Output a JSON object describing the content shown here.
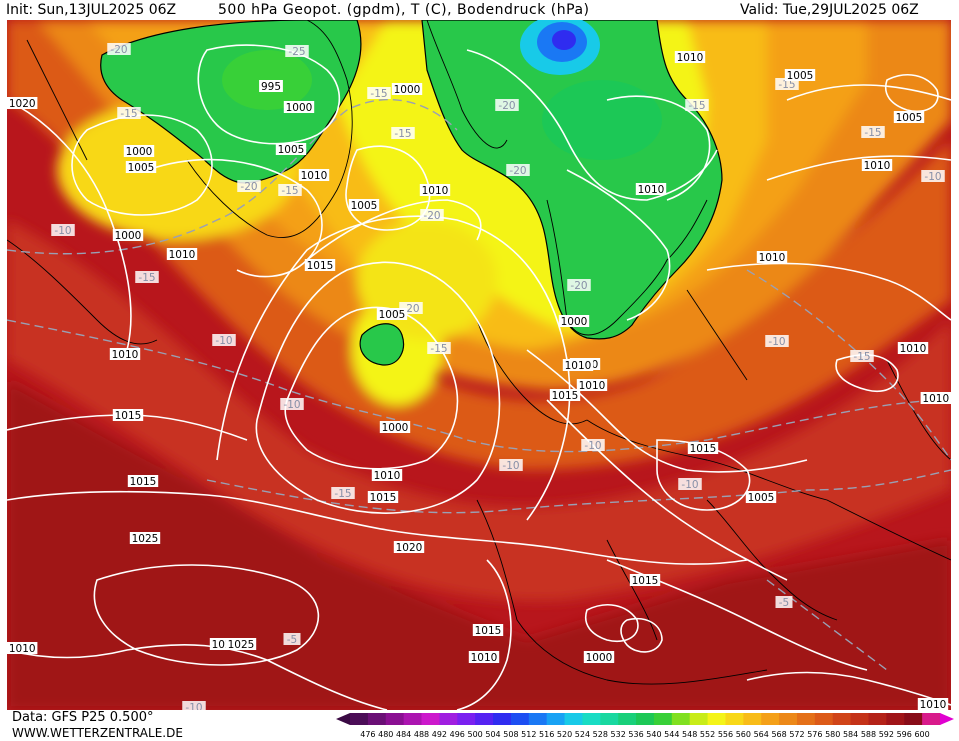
{
  "header": {
    "init": "Init: Sun,13JUL2025 06Z",
    "title": "500 hPa Geopot. (gpdm), T (C), Bodendruck (hPa)",
    "valid": "Valid: Tue,29JUL2025 06Z"
  },
  "footer": {
    "source": "Data: GFS P25 0.500°",
    "site": "WWW.WETTERZENTRALE.DE"
  },
  "colorbar": {
    "ticks": [
      476,
      480,
      484,
      488,
      492,
      496,
      500,
      504,
      508,
      512,
      516,
      520,
      524,
      528,
      532,
      536,
      540,
      544,
      548,
      552,
      556,
      560,
      564,
      568,
      572,
      576,
      580,
      584,
      588,
      592,
      596,
      600
    ],
    "colors": [
      "#4b0d57",
      "#6a0f75",
      "#8a0f92",
      "#ab14b0",
      "#cc18cc",
      "#a01ee0",
      "#7a20f0",
      "#5522f2",
      "#2f2cf0",
      "#1c4ef2",
      "#1a78f4",
      "#18a2f4",
      "#18cae8",
      "#18dcc4",
      "#18d8a0",
      "#18d07a",
      "#1cc856",
      "#38d038",
      "#80e020",
      "#c8ec18",
      "#f4f418",
      "#f8d818",
      "#f8bc18",
      "#f4a018",
      "#ec8818",
      "#e47018",
      "#dc5a18",
      "#d04418",
      "#c43218",
      "#b42218",
      "#a01418",
      "#880c18",
      "#d81a8a"
    ],
    "lowTriangle": "#3a0a44",
    "highTriangle": "#e000d0"
  },
  "map": {
    "temp_labels": [
      "-20",
      "-25",
      "-15",
      "-15",
      "-20",
      "-15",
      "-15",
      "-15",
      "-20",
      "-20",
      "-15",
      "-15",
      "-20",
      "-10",
      "-15",
      "-10",
      "-10",
      "-15",
      "-20",
      "-10",
      "-10",
      "-15",
      "-10",
      "-10",
      "-10",
      "-5",
      "-5",
      "-15",
      "-20",
      "-10"
    ],
    "pressure_labels": [
      "995",
      "1000",
      "1005",
      "1000",
      "1005",
      "1010",
      "1010",
      "1005",
      "1000",
      "1010",
      "1015",
      "1020",
      "1010",
      "1015",
      "1010",
      "1015",
      "1020",
      "1025",
      "1020",
      "1025",
      "1000",
      "1005",
      "1010",
      "1015",
      "1000",
      "1010",
      "1010",
      "1015",
      "1010",
      "1015",
      "1015",
      "1015",
      "1010",
      "1005",
      "1000",
      "1005",
      "1010",
      "1005",
      "1010",
      "1010",
      "1010",
      "1010",
      "1000",
      "1010",
      "1010"
    ]
  }
}
